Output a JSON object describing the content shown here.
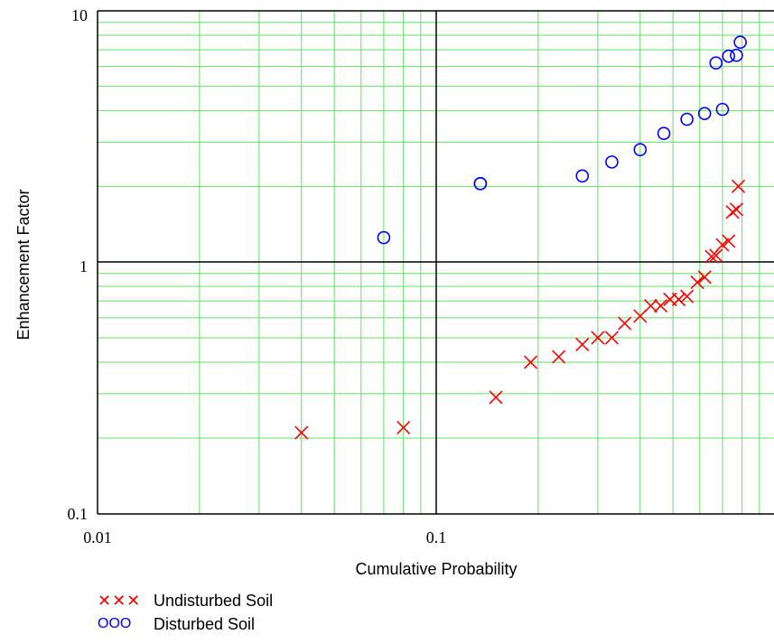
{
  "chart_data": {
    "type": "scatter",
    "title": "",
    "xlabel": "Cumulative Probability",
    "ylabel": "Enhancement Factor",
    "x_scale": "log",
    "y_scale": "log",
    "xlim": [
      0.01,
      0.75
    ],
    "ylim": [
      0.1,
      10
    ],
    "x_tick_labels": [
      "0.01",
      "0.1"
    ],
    "y_tick_labels": [
      "0.1",
      "1",
      "10"
    ],
    "grid": true,
    "grid_color": "#66dd66",
    "legend_position": "bottom-left",
    "series": [
      {
        "name": "Undisturbed Soil",
        "marker": "x",
        "color": "#ff0000",
        "legend_marker_text": "✕✕✕",
        "x": [
          0.04,
          0.08,
          0.15,
          0.19,
          0.23,
          0.27,
          0.3,
          0.33,
          0.36,
          0.4,
          0.43,
          0.46,
          0.49,
          0.52,
          0.55,
          0.59,
          0.62,
          0.65,
          0.67,
          0.7,
          0.73,
          0.75,
          0.77,
          0.78
        ],
        "y": [
          0.21,
          0.22,
          0.29,
          0.4,
          0.42,
          0.47,
          0.5,
          0.5,
          0.57,
          0.61,
          0.67,
          0.67,
          0.71,
          0.71,
          0.73,
          0.83,
          0.87,
          1.05,
          1.06,
          1.17,
          1.21,
          1.58,
          1.62,
          2.0
        ]
      },
      {
        "name": "Disturbed Soil",
        "marker": "o",
        "color": "#0000ff",
        "legend_marker_text": "OOO",
        "x": [
          0.07,
          0.135,
          0.135,
          0.27,
          0.33,
          0.4,
          0.47,
          0.55,
          0.62,
          0.7,
          0.67,
          0.73,
          0.77,
          0.79
        ],
        "y": [
          1.25,
          2.05,
          2.05,
          2.2,
          2.5,
          2.8,
          3.25,
          3.7,
          3.9,
          4.05,
          6.2,
          6.6,
          6.65,
          7.5
        ]
      }
    ]
  }
}
